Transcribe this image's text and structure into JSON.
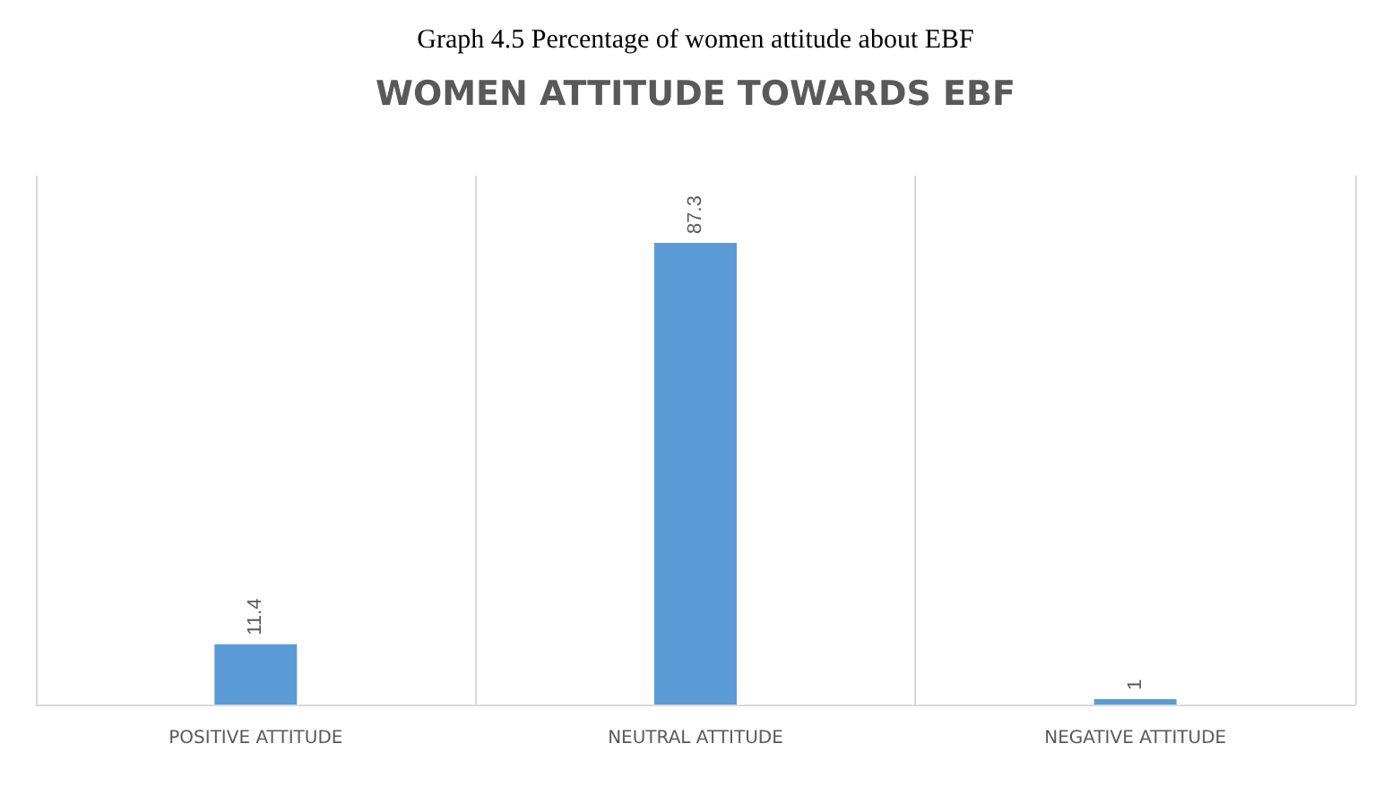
{
  "chart_data": {
    "type": "bar",
    "title": "WOMEN ATTITUDE TOWARDS EBF",
    "annotations": [
      "Graph 4.5 Percentage of women attitude about EBF"
    ],
    "categories": [
      "POSITIVE ATTITUDE",
      "NEUTRAL ATTITUDE",
      "NEGATIVE ATTITUDE"
    ],
    "values": [
      11.4,
      87.3,
      1
    ],
    "color": "#5b9bd5",
    "data_labels": true,
    "grid": "x"
  }
}
